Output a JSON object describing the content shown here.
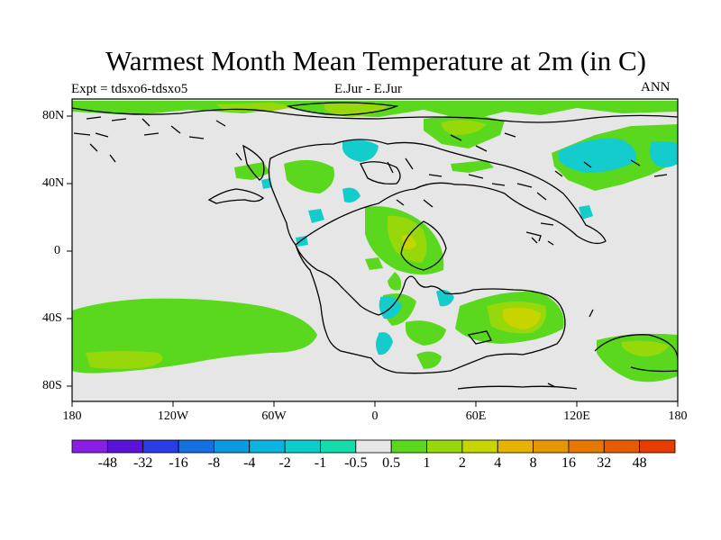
{
  "title": "Warmest Month Mean Temperature at 2m (in C)",
  "subtitle_left": "Expt = tdsxo6-tdsxo5",
  "subtitle_center": "E.Jur - E.Jur",
  "subtitle_right": "ANN",
  "x_ticks": [
    "180",
    "120W",
    "60W",
    "0",
    "60E",
    "120E",
    "180"
  ],
  "y_ticks": [
    "80N",
    "40N",
    "0",
    "40S",
    "80S"
  ],
  "colorbar": {
    "colors": [
      "#8a1ee6",
      "#5a14d8",
      "#2a3ce6",
      "#1470e0",
      "#0a9ae0",
      "#0ab4e0",
      "#0acece",
      "#14dcaa",
      "#e6e6e6",
      "#5ad81e",
      "#96d80a",
      "#c8d400",
      "#e6b400",
      "#e69600",
      "#e67800",
      "#e65a00",
      "#e63c00"
    ],
    "labels": [
      "-48",
      "-32",
      "-16",
      "-8",
      "-4",
      "-2",
      "-1",
      "-0.5",
      "0.5",
      "1",
      "2",
      "4",
      "8",
      "16",
      "32",
      "48"
    ]
  },
  "map_colors": {
    "background": "#e6e6e6",
    "low_cool": "#14cccc",
    "mild_warm": "#5ad81e",
    "warmer": "#96d80a",
    "warmest": "#c8d400",
    "coast": "#000000"
  }
}
